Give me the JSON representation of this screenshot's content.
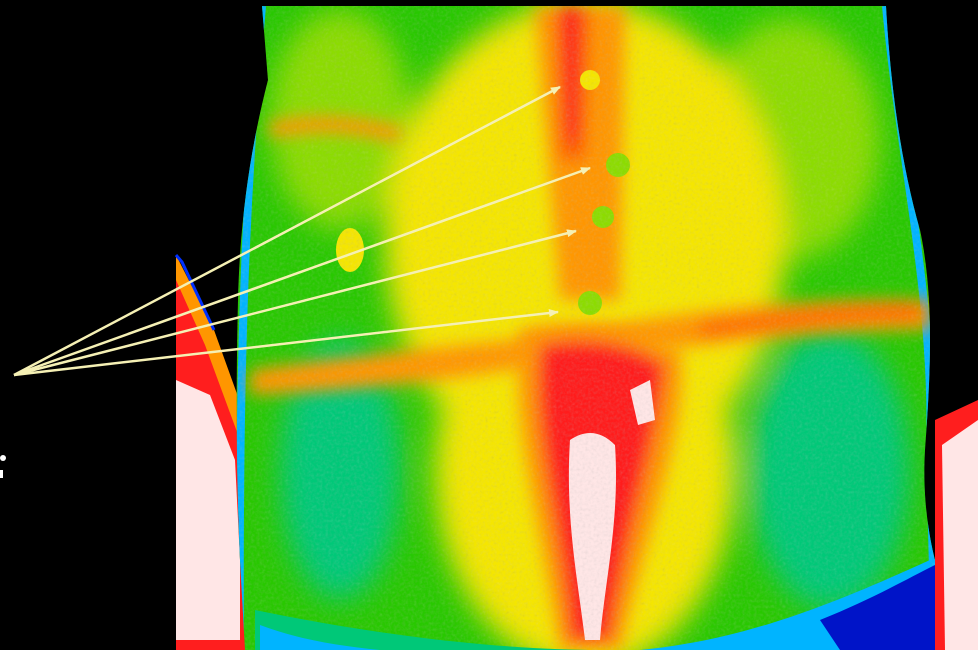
{
  "image": {
    "subject": "thermal-image-torso",
    "palette": {
      "background": "#000000",
      "coolest": "#0014c8",
      "cool": "#00b4ff",
      "teal": "#00c878",
      "green": "#28c800",
      "lime": "#8cdc00",
      "yellow": "#f5e600",
      "orange": "#ff9600",
      "hot": "#ff5a00",
      "hotter": "#ff1e1e",
      "hottest": "#ffe6e6"
    },
    "arrow_color": "#f5f0b4",
    "arrow_count": 4,
    "highlighted_spots": 4
  }
}
